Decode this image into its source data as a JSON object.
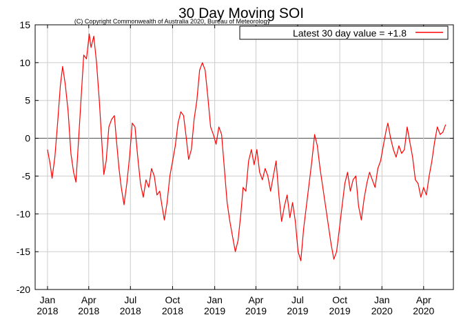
{
  "chart_data": {
    "type": "line",
    "title": "30 Day Moving SOI",
    "subtitle": "(C) Copyright Commonwealth of Australia 2020, Bureau of Meteorology",
    "xlabel": "",
    "ylabel": "",
    "ylim": [
      -20,
      15
    ],
    "xlim": [
      "2017-12-05",
      "2020-06-05"
    ],
    "grid": true,
    "legend": {
      "position": "top-right"
    },
    "y_ticks": [
      15,
      10,
      5,
      0,
      -5,
      -10,
      -15,
      -20
    ],
    "x_ticks": [
      {
        "date": "2018-01-01",
        "month": "Jan",
        "year": "2018"
      },
      {
        "date": "2018-04-01",
        "month": "Apr",
        "year": "2018"
      },
      {
        "date": "2018-07-01",
        "month": "Jul",
        "year": "2018"
      },
      {
        "date": "2018-10-01",
        "month": "Oct",
        "year": "2018"
      },
      {
        "date": "2019-01-01",
        "month": "Jan",
        "year": "2019"
      },
      {
        "date": "2019-04-01",
        "month": "Apr",
        "year": "2019"
      },
      {
        "date": "2019-07-01",
        "month": "Jul",
        "year": "2019"
      },
      {
        "date": "2019-10-01",
        "month": "Oct",
        "year": "2019"
      },
      {
        "date": "2020-01-01",
        "month": "Jan",
        "year": "2020"
      },
      {
        "date": "2020-04-01",
        "month": "Apr",
        "year": "2020"
      }
    ],
    "series": [
      {
        "name": "Latest 30 day value = +1.8",
        "color": "#ff0000",
        "points": [
          [
            "2018-01-01",
            -1.5
          ],
          [
            "2018-01-07",
            -3.5
          ],
          [
            "2018-01-11",
            -5.3
          ],
          [
            "2018-01-17",
            -2.5
          ],
          [
            "2018-01-23",
            2.0
          ],
          [
            "2018-01-29",
            7.0
          ],
          [
            "2018-02-03",
            9.5
          ],
          [
            "2018-02-09",
            7.0
          ],
          [
            "2018-02-15",
            3.5
          ],
          [
            "2018-02-21",
            -2.0
          ],
          [
            "2018-02-27",
            -4.5
          ],
          [
            "2018-03-04",
            -5.8
          ],
          [
            "2018-03-09",
            -1.0
          ],
          [
            "2018-03-15",
            5.0
          ],
          [
            "2018-03-21",
            11.0
          ],
          [
            "2018-03-27",
            10.5
          ],
          [
            "2018-04-02",
            13.8
          ],
          [
            "2018-04-06",
            12.0
          ],
          [
            "2018-04-12",
            13.5
          ],
          [
            "2018-04-18",
            10.0
          ],
          [
            "2018-04-24",
            5.0
          ],
          [
            "2018-04-30",
            -1.0
          ],
          [
            "2018-05-04",
            -4.8
          ],
          [
            "2018-05-09",
            -3.0
          ],
          [
            "2018-05-15",
            1.5
          ],
          [
            "2018-05-21",
            2.5
          ],
          [
            "2018-05-27",
            3.0
          ],
          [
            "2018-05-31",
            0.0
          ],
          [
            "2018-06-06",
            -4.0
          ],
          [
            "2018-06-11",
            -6.5
          ],
          [
            "2018-06-17",
            -8.8
          ],
          [
            "2018-06-23",
            -6.0
          ],
          [
            "2018-06-29",
            -2.5
          ],
          [
            "2018-07-05",
            2.0
          ],
          [
            "2018-07-11",
            1.5
          ],
          [
            "2018-07-17",
            -2.5
          ],
          [
            "2018-07-23",
            -6.0
          ],
          [
            "2018-07-29",
            -7.8
          ],
          [
            "2018-08-04",
            -5.5
          ],
          [
            "2018-08-10",
            -6.5
          ],
          [
            "2018-08-16",
            -4.0
          ],
          [
            "2018-08-22",
            -5.0
          ],
          [
            "2018-08-28",
            -7.5
          ],
          [
            "2018-09-03",
            -7.0
          ],
          [
            "2018-09-08",
            -9.0
          ],
          [
            "2018-09-13",
            -10.8
          ],
          [
            "2018-09-19",
            -8.5
          ],
          [
            "2018-09-25",
            -5.0
          ],
          [
            "2018-10-01",
            -3.0
          ],
          [
            "2018-10-07",
            -1.0
          ],
          [
            "2018-10-13",
            2.0
          ],
          [
            "2018-10-19",
            3.5
          ],
          [
            "2018-10-25",
            3.0
          ],
          [
            "2018-10-31",
            0.0
          ],
          [
            "2018-11-05",
            -2.8
          ],
          [
            "2018-11-11",
            -1.5
          ],
          [
            "2018-11-17",
            2.5
          ],
          [
            "2018-11-23",
            5.0
          ],
          [
            "2018-11-29",
            9.0
          ],
          [
            "2018-12-05",
            10.0
          ],
          [
            "2018-12-11",
            9.0
          ],
          [
            "2018-12-17",
            5.5
          ],
          [
            "2018-12-23",
            1.5
          ],
          [
            "2018-12-29",
            0.5
          ],
          [
            "2019-01-04",
            -0.8
          ],
          [
            "2019-01-10",
            1.5
          ],
          [
            "2019-01-16",
            0.5
          ],
          [
            "2019-01-22",
            -4.0
          ],
          [
            "2019-01-28",
            -8.5
          ],
          [
            "2019-02-03",
            -11.0
          ],
          [
            "2019-02-09",
            -13.0
          ],
          [
            "2019-02-15",
            -15.0
          ],
          [
            "2019-02-21",
            -13.5
          ],
          [
            "2019-02-27",
            -10.0
          ],
          [
            "2019-03-04",
            -6.5
          ],
          [
            "2019-03-10",
            -7.0
          ],
          [
            "2019-03-16",
            -3.0
          ],
          [
            "2019-03-22",
            -1.5
          ],
          [
            "2019-03-28",
            -3.5
          ],
          [
            "2019-04-03",
            -1.5
          ],
          [
            "2019-04-09",
            -4.5
          ],
          [
            "2019-04-15",
            -5.5
          ],
          [
            "2019-04-21",
            -4.0
          ],
          [
            "2019-04-27",
            -5.0
          ],
          [
            "2019-05-03",
            -7.0
          ],
          [
            "2019-05-09",
            -5.0
          ],
          [
            "2019-05-15",
            -3.0
          ],
          [
            "2019-05-21",
            -7.5
          ],
          [
            "2019-05-27",
            -11.0
          ],
          [
            "2019-06-02",
            -9.0
          ],
          [
            "2019-06-08",
            -7.5
          ],
          [
            "2019-06-14",
            -10.5
          ],
          [
            "2019-06-20",
            -8.5
          ],
          [
            "2019-06-26",
            -11.0
          ],
          [
            "2019-07-02",
            -15.0
          ],
          [
            "2019-07-08",
            -16.2
          ],
          [
            "2019-07-14",
            -12.0
          ],
          [
            "2019-07-20",
            -9.0
          ],
          [
            "2019-07-26",
            -6.0
          ],
          [
            "2019-08-01",
            -3.0
          ],
          [
            "2019-08-07",
            0.5
          ],
          [
            "2019-08-13",
            -1.0
          ],
          [
            "2019-08-19",
            -4.0
          ],
          [
            "2019-08-25",
            -6.5
          ],
          [
            "2019-08-31",
            -9.0
          ],
          [
            "2019-09-06",
            -11.5
          ],
          [
            "2019-09-12",
            -14.0
          ],
          [
            "2019-09-18",
            -16.0
          ],
          [
            "2019-09-24",
            -15.0
          ],
          [
            "2019-09-30",
            -12.0
          ],
          [
            "2019-10-06",
            -9.0
          ],
          [
            "2019-10-12",
            -6.0
          ],
          [
            "2019-10-18",
            -4.5
          ],
          [
            "2019-10-24",
            -7.0
          ],
          [
            "2019-10-30",
            -5.5
          ],
          [
            "2019-11-05",
            -5.0
          ],
          [
            "2019-11-11",
            -9.0
          ],
          [
            "2019-11-17",
            -10.8
          ],
          [
            "2019-11-23",
            -8.0
          ],
          [
            "2019-11-29",
            -6.0
          ],
          [
            "2019-12-05",
            -4.5
          ],
          [
            "2019-12-11",
            -5.5
          ],
          [
            "2019-12-17",
            -6.5
          ],
          [
            "2019-12-23",
            -4.0
          ],
          [
            "2019-12-29",
            -3.0
          ],
          [
            "2020-01-04",
            -1.0
          ],
          [
            "2020-01-10",
            1.0
          ],
          [
            "2020-01-14",
            2.0
          ],
          [
            "2020-01-20",
            0.0
          ],
          [
            "2020-01-26",
            -1.5
          ],
          [
            "2020-02-01",
            -2.5
          ],
          [
            "2020-02-07",
            -1.0
          ],
          [
            "2020-02-13",
            -2.0
          ],
          [
            "2020-02-19",
            -1.5
          ],
          [
            "2020-02-25",
            1.5
          ],
          [
            "2020-03-02",
            -0.5
          ],
          [
            "2020-03-08",
            -2.5
          ],
          [
            "2020-03-14",
            -5.5
          ],
          [
            "2020-03-20",
            -6.0
          ],
          [
            "2020-03-26",
            -7.8
          ],
          [
            "2020-04-01",
            -6.5
          ],
          [
            "2020-04-07",
            -7.5
          ],
          [
            "2020-04-13",
            -5.0
          ],
          [
            "2020-04-19",
            -3.0
          ],
          [
            "2020-04-25",
            -0.5
          ],
          [
            "2020-05-01",
            1.5
          ],
          [
            "2020-05-07",
            0.5
          ],
          [
            "2020-05-13",
            0.8
          ],
          [
            "2020-05-19",
            1.8
          ]
        ]
      }
    ]
  }
}
